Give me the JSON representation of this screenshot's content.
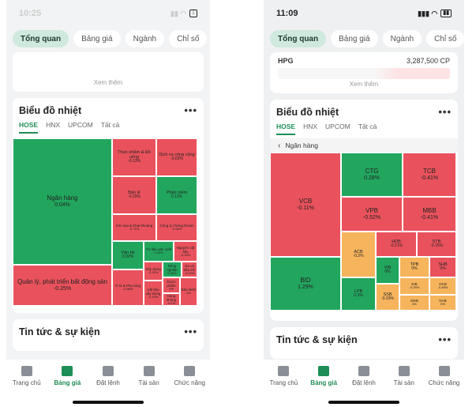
{
  "left": {
    "status_time": "10:25",
    "tabs": [
      "Tổng quan",
      "Bảng giá",
      "Ngành",
      "Chỉ số"
    ],
    "see_more": "Xem thêm",
    "heatmap_title": "Biểu đồ nhiệt",
    "heatmap_tabs": [
      "HOSE",
      "HNX",
      "UPCOM",
      "Tất cả"
    ],
    "cells": [
      {
        "name": "Ngân hàng",
        "pct": "0.04%",
        "c": "green"
      },
      {
        "name": "Thực phẩm & Đồ uống",
        "pct": "-0.13%",
        "c": "red"
      },
      {
        "name": "Dịch vụ công cộng",
        "pct": "-0.03%",
        "c": "red"
      },
      {
        "name": "Bán lẻ",
        "pct": "-0.29%",
        "c": "red"
      },
      {
        "name": "Phần mềm",
        "pct": "0.13%",
        "c": "green"
      },
      {
        "name": "Kim loại & Khai khoáng",
        "pct": "-0.71%",
        "c": "red"
      },
      {
        "name": "Công ty chứng khoán",
        "pct": "-0.06%",
        "c": "red"
      },
      {
        "name": "Quản lý, phát triển bất động sản",
        "pct": "-0.25%",
        "c": "red"
      },
      {
        "name": "Vận tải",
        "pct": "0.02%",
        "c": "green"
      },
      {
        "name": "Tư liệu sản xuất",
        "pct": "0.42%",
        "c": "green"
      },
      {
        "name": "Nguyên vật liệu",
        "pct": "-0.33%",
        "c": "red"
      },
      {
        "name": "Xây dựng",
        "pct": "-0.32%",
        "c": "red"
      },
      {
        "name": "Nông nghiệp",
        "pct": "0.28%",
        "c": "green"
      },
      {
        "name": "Ga và dầu khí",
        "pct": "-0.02%",
        "c": "red"
      },
      {
        "name": "Ô tô & Phụ tùng",
        "pct": "-0.58%",
        "c": "red"
      },
      {
        "name": "Vật liệu xây dựng",
        "pct": "-0.19%",
        "c": "red"
      },
      {
        "name": "Dược phẩm",
        "pct": "0%",
        "c": "red"
      },
      {
        "name": "Hàng không",
        "pct": "-0.1%",
        "c": "red"
      },
      {
        "name": "Bảo hiểm",
        "pct": "0%",
        "c": "red"
      }
    ],
    "news_title": "Tin tức & sự kiện"
  },
  "right": {
    "status_time": "11:09",
    "tabs": [
      "Tổng quan",
      "Bảng giá",
      "Ngành",
      "Chỉ số"
    ],
    "hpg_name": "HPG",
    "hpg_value": "3,287,500 CP",
    "see_more": "Xem thêm",
    "heatmap_title": "Biểu đồ nhiệt",
    "heatmap_tabs": [
      "HOSE",
      "HNX",
      "UPCOM",
      "Tất cả"
    ],
    "breadcrumb": "Ngân hàng",
    "cells": [
      {
        "name": "VCB",
        "pct": "-0.11%",
        "c": "red"
      },
      {
        "name": "CTG",
        "pct": "0.28%",
        "c": "green"
      },
      {
        "name": "TCB",
        "pct": "-0.41%",
        "c": "red"
      },
      {
        "name": "VPB",
        "pct": "-0.52%",
        "c": "red"
      },
      {
        "name": "MBB",
        "pct": "-0.41%",
        "c": "red"
      },
      {
        "name": "ACB",
        "pct": "-0.2%",
        "c": "orange"
      },
      {
        "name": "HDB",
        "pct": "-0.21%",
        "c": "red"
      },
      {
        "name": "STB",
        "pct": "-0.15%",
        "c": "red"
      },
      {
        "name": "BID",
        "pct": "1.29%",
        "c": "green"
      },
      {
        "name": "VIB",
        "pct": "0%",
        "c": "green"
      },
      {
        "name": "TPB",
        "pct": "0%",
        "c": "orange"
      },
      {
        "name": "SHB",
        "pct": "0%",
        "c": "red"
      },
      {
        "name": "LPB",
        "pct": "0.3%",
        "c": "green"
      },
      {
        "name": "SSB",
        "pct": "-0.29%",
        "c": "orange"
      },
      {
        "name": "EIB",
        "pct": "-0.25%",
        "c": "orange"
      },
      {
        "name": "OCB",
        "pct": "-0.46%",
        "c": "orange"
      },
      {
        "name": "MSB",
        "pct": "0%",
        "c": "orange"
      },
      {
        "name": "NAB",
        "pct": "0%",
        "c": "orange"
      }
    ],
    "news_title": "Tin tức & sự kiện"
  },
  "nav": [
    "Trang chủ",
    "Bảng giá",
    "Đặt lệnh",
    "Tài sản",
    "Chức năng"
  ]
}
